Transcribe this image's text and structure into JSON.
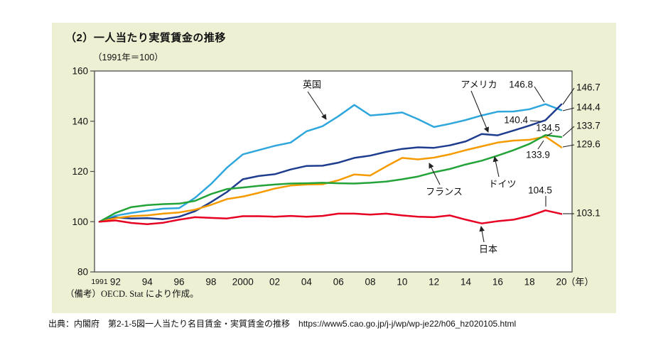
{
  "note": "（備考）OECD. Stat により作成。",
  "source": "出典：内閣府　第2-1-5図一人当たり名目賃金・実質賃金の推移　https://www5.cao.go.jp/j-j/wp/wp-je22/h06_hz020105.html",
  "chart_data": {
    "type": "line",
    "title": "（2）一人当たり実質賃金の推移",
    "subtitle": "（1991年＝100）",
    "x_start": 1991,
    "x_end": 2020,
    "ylim": [
      80,
      160
    ],
    "yticks": [
      80,
      100,
      120,
      140,
      160
    ],
    "xticks": [
      {
        "year": 1991,
        "label": "1991"
      },
      {
        "year": 1992,
        "label": "92"
      },
      {
        "year": 1994,
        "label": "94"
      },
      {
        "year": 1996,
        "label": "96"
      },
      {
        "year": 1998,
        "label": "98"
      },
      {
        "year": 2000,
        "label": "2000"
      },
      {
        "year": 2002,
        "label": "02"
      },
      {
        "year": 2004,
        "label": "04"
      },
      {
        "year": 2006,
        "label": "06"
      },
      {
        "year": 2008,
        "label": "08"
      },
      {
        "year": 2010,
        "label": "10"
      },
      {
        "year": 2012,
        "label": "12"
      },
      {
        "year": 2014,
        "label": "14"
      },
      {
        "year": 2016,
        "label": "16"
      },
      {
        "year": 2018,
        "label": "18"
      },
      {
        "year": 2020,
        "label": "20"
      }
    ],
    "x_unit": "（年）",
    "grid": false,
    "legend_position": "inline-annotations",
    "series": [
      {
        "id": "uk",
        "name": "英国",
        "color": "#2fa7dc",
        "values": [
          100,
          102.4,
          103.5,
          104.4,
          105.2,
          105.4,
          109.5,
          115.0,
          121.5,
          126.8,
          128.5,
          130.2,
          131.5,
          136.0,
          138.0,
          142.0,
          146.5,
          142.3,
          142.8,
          143.5,
          140.8,
          137.7,
          139.0,
          140.5,
          142.3,
          143.8,
          143.9,
          144.8,
          146.8,
          144.4
        ]
      },
      {
        "id": "us",
        "name": "アメリカ",
        "color": "#1f3d8f",
        "values": [
          100,
          101.7,
          101.3,
          101.4,
          101.0,
          102.0,
          104.2,
          107.8,
          111.8,
          116.9,
          118.2,
          118.9,
          120.8,
          122.2,
          122.3,
          123.5,
          125.4,
          126.3,
          127.8,
          129.0,
          129.6,
          129.4,
          130.4,
          132.0,
          134.9,
          134.4,
          136.3,
          138.3,
          140.4,
          146.7
        ]
      },
      {
        "id": "fr",
        "name": "フランス",
        "color": "#f59b00",
        "values": [
          100,
          101.4,
          102.2,
          102.5,
          103.2,
          103.7,
          104.8,
          106.7,
          109.0,
          110.0,
          111.5,
          113.2,
          114.4,
          114.8,
          114.9,
          116.5,
          118.8,
          118.4,
          122.0,
          125.4,
          124.8,
          125.5,
          126.8,
          128.5,
          130.0,
          131.5,
          132.3,
          132.6,
          133.9,
          129.6
        ]
      },
      {
        "id": "de",
        "name": "ドイツ",
        "color": "#23a338",
        "values": [
          100,
          103.5,
          105.8,
          106.6,
          107.0,
          107.2,
          108.3,
          111.0,
          113.0,
          113.6,
          114.3,
          114.8,
          115.2,
          115.3,
          115.5,
          115.3,
          115.2,
          115.5,
          116.0,
          116.9,
          118.0,
          119.7,
          121.0,
          122.8,
          124.3,
          126.3,
          128.5,
          131.0,
          134.5,
          133.7
        ]
      },
      {
        "id": "jp",
        "name": "日本",
        "color": "#e60021",
        "values": [
          100,
          100.5,
          99.5,
          99.0,
          99.6,
          100.8,
          101.8,
          101.5,
          101.3,
          102.2,
          102.2,
          102.0,
          102.3,
          102.0,
          102.3,
          103.2,
          103.2,
          102.8,
          103.2,
          102.5,
          102.0,
          101.8,
          102.5,
          100.8,
          99.3,
          100.2,
          100.8,
          102.3,
          104.5,
          103.1
        ]
      }
    ],
    "point_labels": [
      {
        "series": "uk",
        "year": 2019,
        "text": "146.8"
      },
      {
        "series": "us",
        "year": 2019,
        "text": "140.4"
      },
      {
        "series": "de",
        "year": 2019,
        "text": "134.5"
      },
      {
        "series": "fr",
        "year": 2019,
        "text": "133.9"
      },
      {
        "series": "jp",
        "year": 2019,
        "text": "104.5"
      }
    ],
    "end_labels": [
      {
        "series": "us",
        "year": 2020,
        "text": "146.7"
      },
      {
        "series": "uk",
        "year": 2020,
        "text": "144.4"
      },
      {
        "series": "de",
        "year": 2020,
        "text": "133.7"
      },
      {
        "series": "fr",
        "year": 2020,
        "text": "129.6"
      },
      {
        "series": "jp",
        "year": 2020,
        "text": "103.1"
      }
    ],
    "colors": {
      "panel_background": "#edf0d3",
      "plot_background": "#ffffff",
      "axis": "#4d4d4d",
      "annotation": "#222222"
    }
  }
}
